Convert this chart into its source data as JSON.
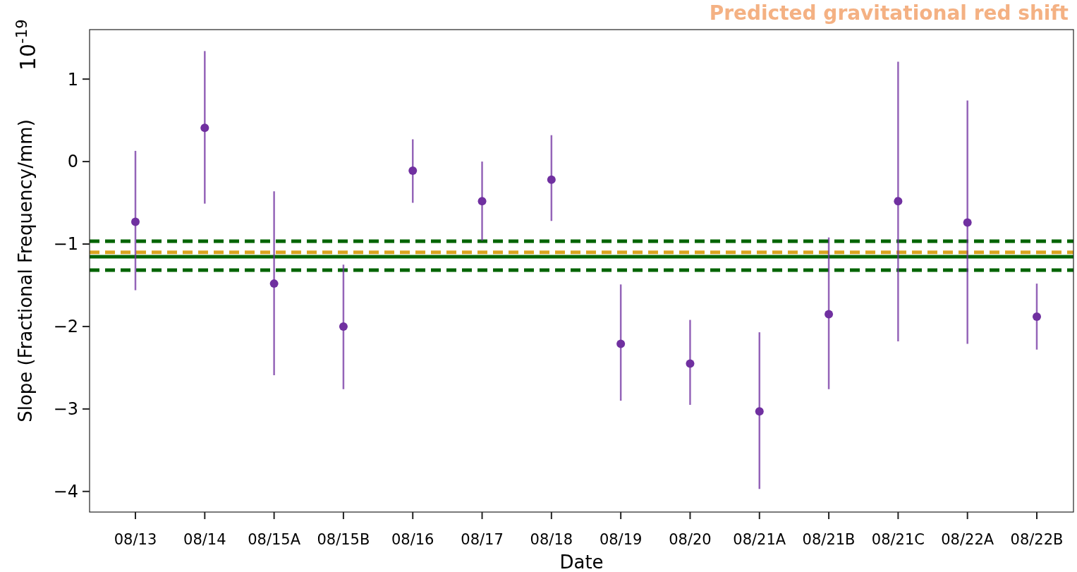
{
  "chart_data": {
    "type": "scatter",
    "xlabel": "Date",
    "ylabel": "Slope (Fractional Frequency/mm)",
    "categories": [
      "08/13",
      "08/14",
      "08/15A",
      "08/15B",
      "08/16",
      "08/17",
      "08/18",
      "08/19",
      "08/20",
      "08/21A",
      "08/21B",
      "08/21C",
      "08/22A",
      "08/22B"
    ],
    "series": [
      {
        "color": "#7030a0",
        "values": [
          -0.73,
          0.41,
          -1.48,
          -2.0,
          -0.11,
          -0.48,
          -0.22,
          -2.21,
          -2.45,
          -3.03,
          -1.85,
          -0.48,
          -0.74,
          -1.88
        ],
        "errors": [
          [
            -1.56,
            0.13
          ],
          [
            -0.51,
            1.34
          ],
          [
            -2.59,
            -0.36
          ],
          [
            -2.76,
            -1.25
          ],
          [
            -0.5,
            0.27
          ],
          [
            -0.96,
            0.0
          ],
          [
            -0.72,
            0.32
          ],
          [
            -2.9,
            -1.49
          ],
          [
            -2.95,
            -1.92
          ],
          [
            -3.97,
            -2.07
          ],
          [
            -2.76,
            -0.92
          ],
          [
            -2.18,
            1.21
          ],
          [
            -2.21,
            0.74
          ],
          [
            -2.28,
            -1.48
          ]
        ]
      }
    ],
    "ylim": [
      -4.25,
      1.6
    ],
    "yticks": [
      -4,
      -3,
      -2,
      -1,
      0,
      1
    ],
    "marker": "circle",
    "ref_lines": [
      {
        "axis": "y",
        "value": -1.1,
        "color": "#daa520",
        "line_style": "dashed"
      },
      {
        "axis": "y",
        "value": -0.966,
        "color": "#006400",
        "line_style": "dashed"
      },
      {
        "axis": "y",
        "value": -1.316,
        "color": "#006400",
        "line_style": "dashed"
      },
      {
        "axis": "y",
        "value": -1.154,
        "color": "#006400",
        "line_style": "solid"
      }
    ],
    "annotations": [
      "10$^{-19}$",
      "Predicted gravitational red shift"
    ]
  }
}
